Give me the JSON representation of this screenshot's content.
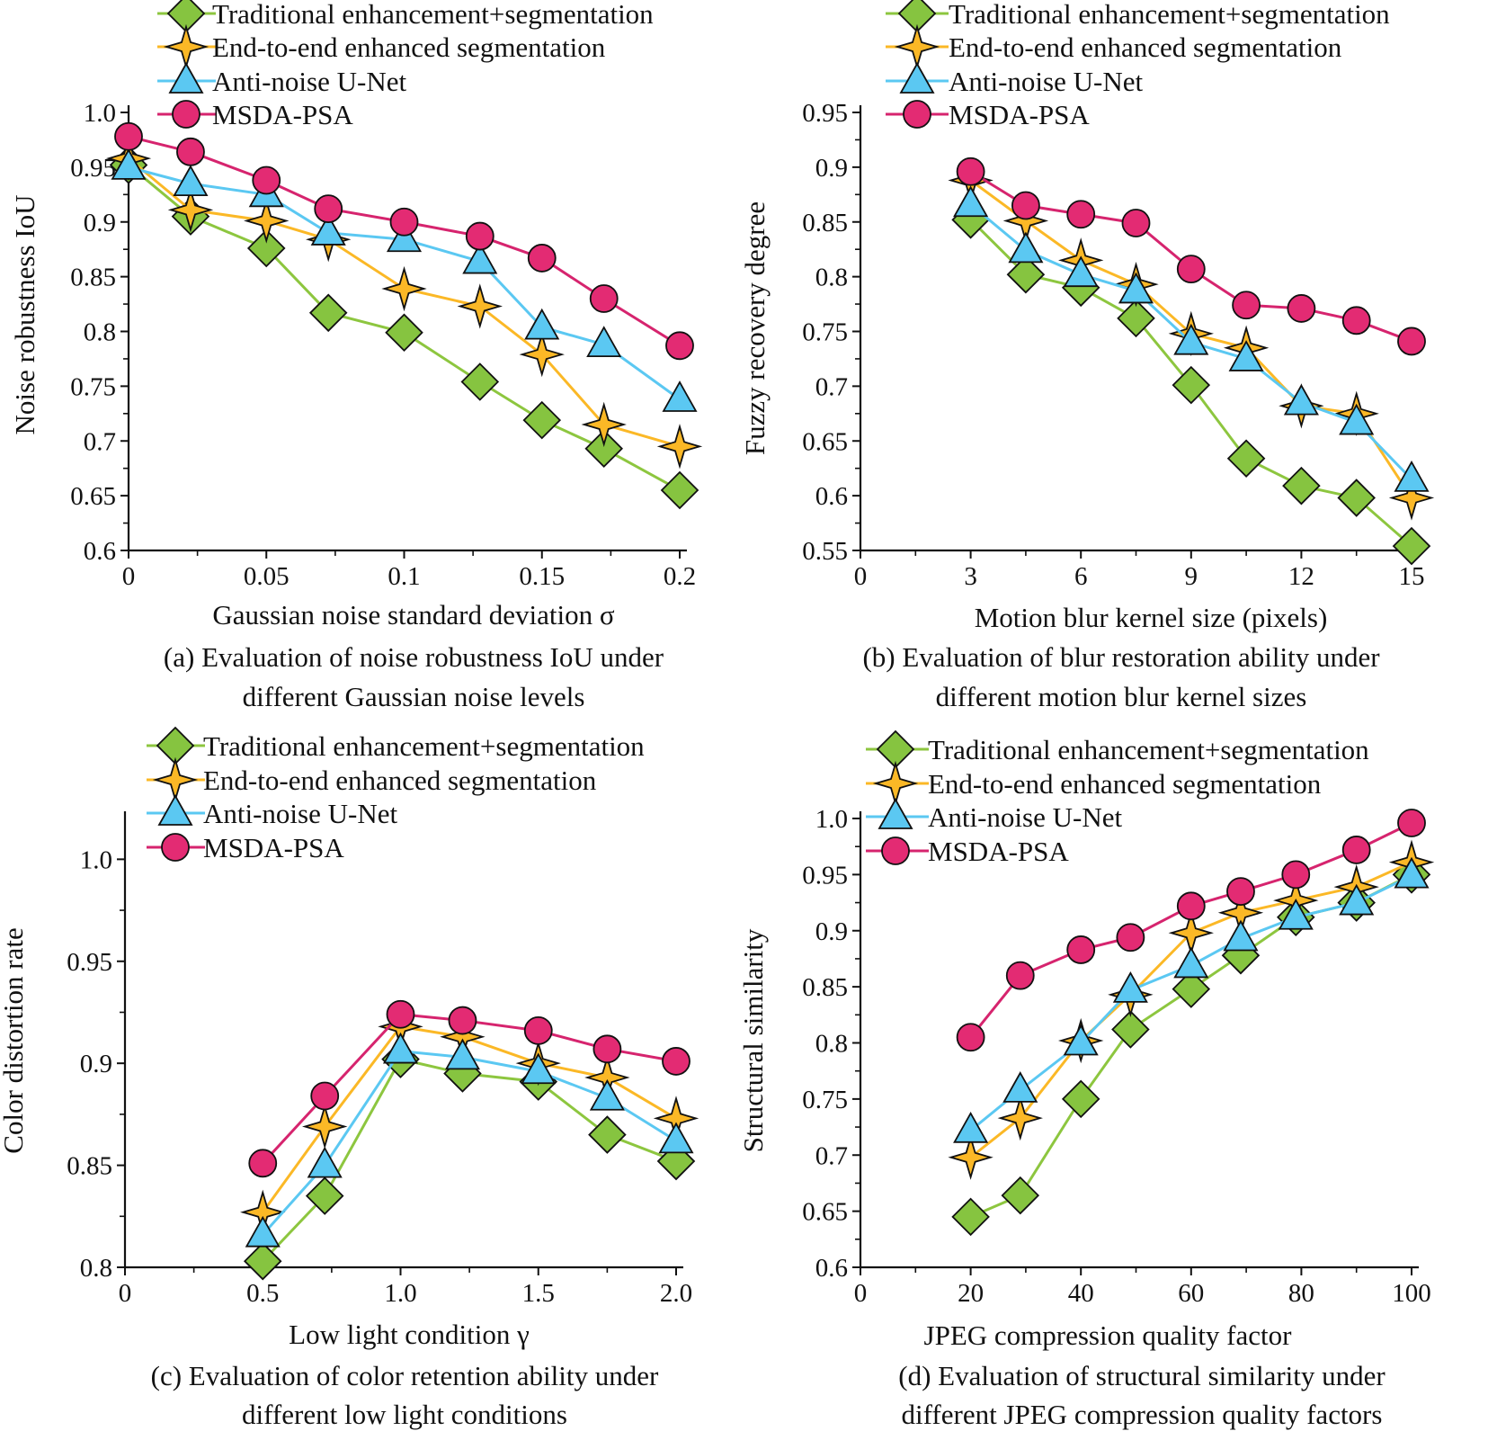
{
  "series_styles": [
    {
      "name": "Traditional enhancement+segmentation",
      "color": "#8dc63f",
      "marker": "diamond-icon",
      "fill": "#86c440"
    },
    {
      "name": "End-to-end enhanced segmentation",
      "color": "#fbb826",
      "marker": "star-icon",
      "fill": "#fbb826"
    },
    {
      "name": "Anti-noise U-Net",
      "color": "#5bc8f2",
      "marker": "triangle-icon",
      "fill": "#5bc8f2"
    },
    {
      "name": "MSDA-PSA",
      "color": "#d6246e",
      "marker": "circle-icon",
      "fill": "#e32b73"
    }
  ],
  "chart_data": [
    {
      "type": "line",
      "title": "",
      "xlabel": "Gaussian noise standard deviation σ",
      "ylabel": "Noise robustness IoU",
      "caption_line1": "(a) Evaluation of noise robustness IoU  under",
      "caption_line2": "different Gaussian noise levels",
      "xlim": [
        0,
        0.2
      ],
      "ylim": [
        0.6,
        1.0
      ],
      "xticks": [
        0,
        0.05,
        0.1,
        0.15,
        0.2
      ],
      "xtick_labels": [
        "0",
        "0.05",
        "0.1",
        "0.15",
        "0.2"
      ],
      "yticks": [
        0.6,
        0.65,
        0.7,
        0.75,
        0.8,
        0.85,
        0.9,
        0.95,
        1.0
      ],
      "ytick_labels": [
        "0.6",
        "0.65",
        "0.7",
        "0.75",
        "0.8",
        "0.85",
        "0.9",
        "0.95",
        "1.0"
      ],
      "x": [
        0,
        0.0225,
        0.05,
        0.0725,
        0.1,
        0.1275,
        0.15,
        0.1725,
        0.2
      ],
      "series": [
        {
          "name": "Traditional enhancement+segmentation",
          "values": [
            0.952,
            0.905,
            0.876,
            0.817,
            0.799,
            0.754,
            0.719,
            0.693,
            0.655
          ]
        },
        {
          "name": "End-to-end enhanced segmentation",
          "values": [
            0.958,
            0.911,
            0.901,
            0.884,
            0.839,
            0.823,
            0.779,
            0.715,
            0.695
          ]
        },
        {
          "name": "Anti-noise U-Net",
          "values": [
            0.95,
            0.935,
            0.925,
            0.89,
            0.884,
            0.864,
            0.804,
            0.788,
            0.738
          ]
        },
        {
          "name": "MSDA-PSA",
          "values": [
            0.978,
            0.964,
            0.938,
            0.912,
            0.9,
            0.887,
            0.867,
            0.83,
            0.787
          ]
        }
      ]
    },
    {
      "type": "line",
      "title": "",
      "xlabel": "Motion blur kernel size (pixels)",
      "ylabel": "Fuzzy recovery degree",
      "caption_line1": "(b) Evaluation of blur restoration ability under",
      "caption_line2": "different motion blur kernel sizes",
      "xlim": [
        0,
        15
      ],
      "ylim": [
        0.55,
        0.95
      ],
      "xticks": [
        0,
        3,
        6,
        9,
        12,
        15
      ],
      "xtick_labels": [
        "0",
        "3",
        "6",
        "9",
        "12",
        "15"
      ],
      "yticks": [
        0.55,
        0.6,
        0.65,
        0.7,
        0.75,
        0.8,
        0.85,
        0.9,
        0.95
      ],
      "ytick_labels": [
        "0.55",
        "0.6",
        "0.65",
        "0.7",
        "0.75",
        "0.8",
        "0.85",
        "0.9",
        "0.95"
      ],
      "x": [
        3,
        4.5,
        6,
        7.5,
        9,
        10.5,
        12,
        13.5,
        15
      ],
      "series": [
        {
          "name": "Traditional enhancement+segmentation",
          "values": [
            0.852,
            0.802,
            0.79,
            0.762,
            0.701,
            0.634,
            0.609,
            0.598,
            0.554
          ]
        },
        {
          "name": "End-to-end enhanced segmentation",
          "values": [
            0.888,
            0.851,
            0.815,
            0.793,
            0.748,
            0.735,
            0.682,
            0.675,
            0.598
          ]
        },
        {
          "name": "Anti-noise U-Net",
          "values": [
            0.866,
            0.824,
            0.802,
            0.787,
            0.74,
            0.725,
            0.685,
            0.667,
            0.615
          ]
        },
        {
          "name": "MSDA-PSA",
          "values": [
            0.896,
            0.865,
            0.857,
            0.849,
            0.807,
            0.774,
            0.771,
            0.76,
            0.741
          ]
        }
      ]
    },
    {
      "type": "line",
      "title": "",
      "xlabel": "Low light condition γ",
      "ylabel": "Color distortion rate",
      "caption_line1": "(c) Evaluation of color retention ability under",
      "caption_line2": "different low light conditions",
      "xlim": [
        0,
        2.0
      ],
      "ylim": [
        0.8,
        1.02
      ],
      "xticks": [
        0,
        0.5,
        1.0,
        1.5,
        2.0
      ],
      "xtick_labels": [
        "0",
        "0.5",
        "1.0",
        "1.5",
        "2.0"
      ],
      "yticks": [
        0.8,
        0.85,
        0.9,
        0.95,
        1.0
      ],
      "ytick_labels": [
        "0.8",
        "0.85",
        "0.9",
        "0.95",
        "1.0"
      ],
      "x": [
        0.5,
        0.725,
        1.0,
        1.225,
        1.5,
        1.75,
        2.0
      ],
      "series": [
        {
          "name": "Traditional enhancement+segmentation",
          "values": [
            0.803,
            0.835,
            0.902,
            0.895,
            0.891,
            0.865,
            0.852
          ]
        },
        {
          "name": "End-to-end enhanced segmentation",
          "values": [
            0.827,
            0.869,
            0.918,
            0.913,
            0.9,
            0.893,
            0.873
          ]
        },
        {
          "name": "Anti-noise U-Net",
          "values": [
            0.816,
            0.85,
            0.906,
            0.903,
            0.896,
            0.883,
            0.862
          ]
        },
        {
          "name": "MSDA-PSA",
          "values": [
            0.851,
            0.884,
            0.924,
            0.921,
            0.916,
            0.907,
            0.901
          ]
        }
      ]
    },
    {
      "type": "line",
      "title": "",
      "xlabel": "JPEG compression quality factor",
      "ylabel": "Structural similarity",
      "caption_line1": "(d) Evaluation of structural similarity under",
      "caption_line2": "different JPEG compression quality factors",
      "xlim": [
        0,
        100
      ],
      "ylim": [
        0.6,
        1.0
      ],
      "xticks": [
        0,
        20,
        40,
        60,
        80,
        100
      ],
      "xtick_labels": [
        "0",
        "20",
        "40",
        "60",
        "80",
        "100"
      ],
      "yticks": [
        0.6,
        0.65,
        0.7,
        0.75,
        0.8,
        0.85,
        0.9,
        0.95,
        1.0
      ],
      "ytick_labels": [
        "0.6",
        "0.65",
        "0.7",
        "0.75",
        "0.8",
        "0.85",
        "0.9",
        "0.95",
        "1.0"
      ],
      "x": [
        20,
        29,
        40,
        49,
        60,
        69,
        79,
        90,
        100
      ],
      "series": [
        {
          "name": "Traditional enhancement+segmentation",
          "values": [
            0.645,
            0.664,
            0.75,
            0.812,
            0.848,
            0.878,
            0.912,
            0.925,
            0.95
          ]
        },
        {
          "name": "End-to-end enhanced segmentation",
          "values": [
            0.698,
            0.733,
            0.802,
            0.843,
            0.898,
            0.916,
            0.927,
            0.939,
            0.961
          ]
        },
        {
          "name": "Anti-noise U-Net",
          "values": [
            0.722,
            0.758,
            0.8,
            0.847,
            0.869,
            0.893,
            0.912,
            0.925,
            0.949
          ]
        },
        {
          "name": "MSDA-PSA",
          "values": [
            0.805,
            0.86,
            0.883,
            0.894,
            0.922,
            0.935,
            0.95,
            0.972,
            0.996
          ]
        }
      ]
    }
  ]
}
